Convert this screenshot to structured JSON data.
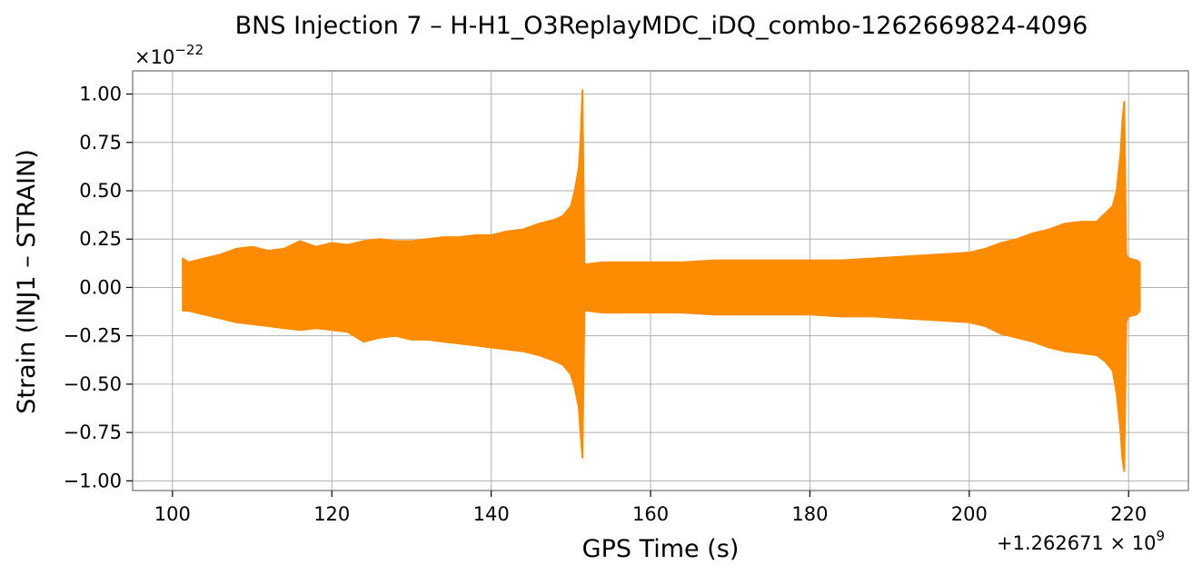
{
  "chart_data": {
    "type": "line",
    "title": "BNS Injection 7 – H-H1_O3ReplayMDC_iDQ_combo-1262669824-4096",
    "xlabel": "GPS Time (s)",
    "ylabel": "Strain (INJ1 – STRAIN)",
    "x_offset_label": "+1.262671",
    "x_offset_exponent": "9",
    "y_scale_label": "×10",
    "y_scale_exponent": "−22",
    "xlim": [
      95,
      227.5
    ],
    "ylim": [
      -1.05,
      1.12
    ],
    "xticks": [
      100,
      120,
      140,
      160,
      180,
      200,
      220
    ],
    "yticks": [
      -1.0,
      -0.75,
      -0.5,
      -0.25,
      0.0,
      0.25,
      0.5,
      0.75,
      1.0
    ],
    "grid": true,
    "series": [
      {
        "color": "#ff8c00",
        "envelope": {
          "x": [
            101.3,
            102,
            104,
            106,
            108,
            110,
            112,
            114,
            116,
            118,
            120,
            122,
            124,
            126,
            128,
            130,
            132,
            134,
            136,
            138,
            140,
            142,
            144,
            146,
            148,
            149,
            150,
            150.5,
            151,
            151.2,
            151.45,
            151.7,
            152,
            154,
            156,
            158,
            160,
            164,
            168,
            172,
            176,
            180,
            184,
            188,
            192,
            196,
            200,
            202,
            204,
            206,
            208,
            210,
            212,
            214,
            216,
            217,
            218,
            218.5,
            219,
            219.2,
            219.45,
            219.7,
            220,
            221,
            221.4
          ],
          "upper": [
            0.15,
            0.13,
            0.15,
            0.17,
            0.2,
            0.21,
            0.19,
            0.2,
            0.24,
            0.21,
            0.23,
            0.22,
            0.24,
            0.25,
            0.24,
            0.24,
            0.25,
            0.26,
            0.26,
            0.27,
            0.27,
            0.29,
            0.3,
            0.33,
            0.35,
            0.37,
            0.42,
            0.5,
            0.62,
            0.75,
            1.02,
            0.12,
            0.12,
            0.13,
            0.13,
            0.13,
            0.13,
            0.13,
            0.14,
            0.14,
            0.14,
            0.14,
            0.14,
            0.15,
            0.16,
            0.17,
            0.18,
            0.2,
            0.23,
            0.25,
            0.28,
            0.3,
            0.33,
            0.34,
            0.34,
            0.38,
            0.42,
            0.5,
            0.7,
            0.85,
            0.96,
            0.17,
            0.15,
            0.14,
            0.13
          ],
          "lower": [
            -0.12,
            -0.12,
            -0.14,
            -0.16,
            -0.18,
            -0.19,
            -0.2,
            -0.21,
            -0.22,
            -0.21,
            -0.22,
            -0.23,
            -0.28,
            -0.26,
            -0.25,
            -0.27,
            -0.27,
            -0.28,
            -0.29,
            -0.3,
            -0.31,
            -0.32,
            -0.33,
            -0.35,
            -0.38,
            -0.4,
            -0.45,
            -0.52,
            -0.62,
            -0.75,
            -0.88,
            -0.12,
            -0.12,
            -0.13,
            -0.13,
            -0.13,
            -0.13,
            -0.13,
            -0.14,
            -0.14,
            -0.14,
            -0.14,
            -0.15,
            -0.15,
            -0.16,
            -0.17,
            -0.18,
            -0.2,
            -0.24,
            -0.26,
            -0.28,
            -0.31,
            -0.33,
            -0.34,
            -0.35,
            -0.38,
            -0.43,
            -0.55,
            -0.75,
            -0.88,
            -0.95,
            -0.18,
            -0.15,
            -0.14,
            -0.12
          ]
        }
      }
    ]
  }
}
